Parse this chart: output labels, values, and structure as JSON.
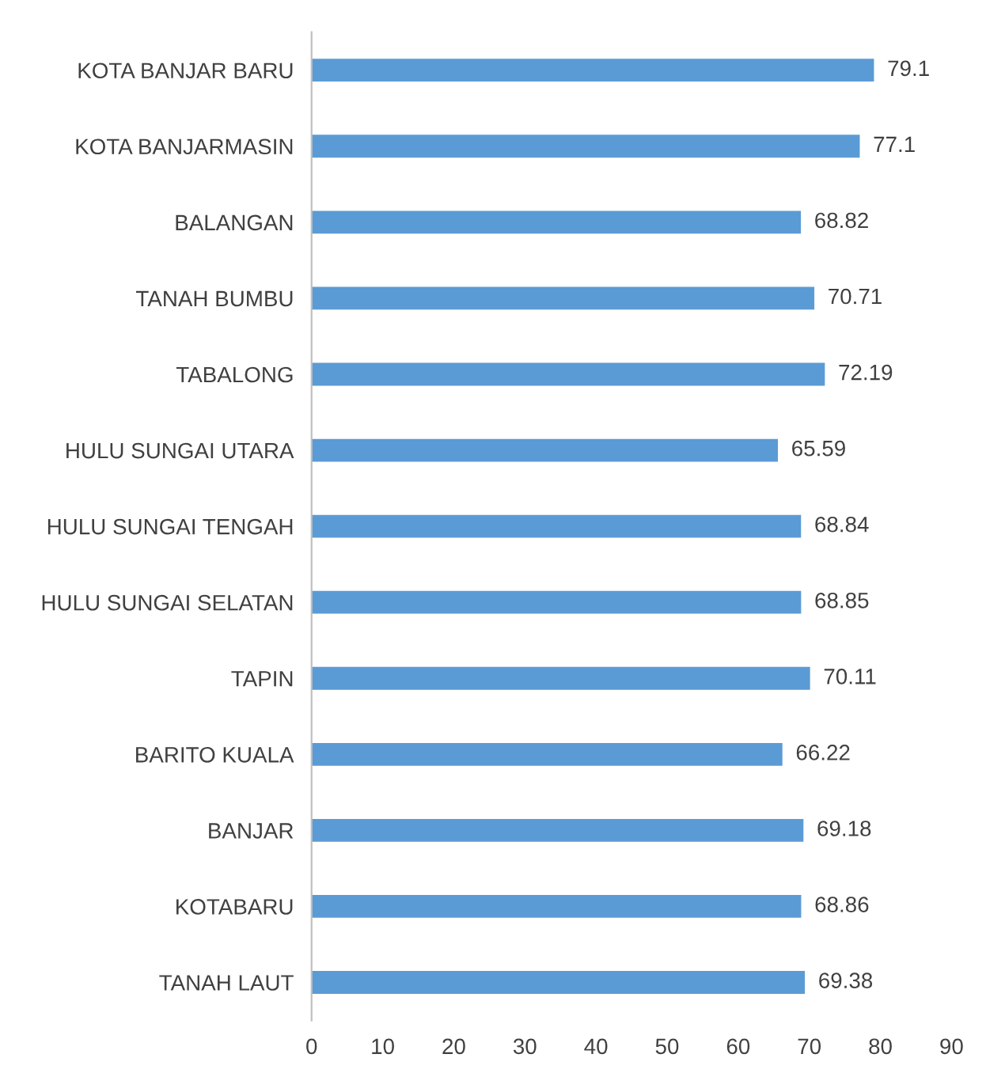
{
  "chart_data": {
    "type": "bar",
    "orientation": "horizontal",
    "categories": [
      "KOTA BANJAR BARU",
      "KOTA BANJARMASIN",
      "BALANGAN",
      "TANAH BUMBU",
      "TABALONG",
      "HULU SUNGAI UTARA",
      "HULU SUNGAI TENGAH",
      "HULU SUNGAI SELATAN",
      "TAPIN",
      "BARITO KUALA",
      "BANJAR",
      "KOTABARU",
      "TANAH LAUT"
    ],
    "values": [
      79.1,
      77.1,
      68.82,
      70.71,
      72.19,
      65.59,
      68.84,
      68.85,
      70.11,
      66.22,
      69.18,
      68.86,
      69.38
    ],
    "color": "#5b9bd5",
    "xlim": [
      0,
      90
    ],
    "xticks": [
      0,
      10,
      20,
      30,
      40,
      50,
      60,
      70,
      80,
      90
    ],
    "data_labels": true,
    "grid": false,
    "legend": false
  }
}
